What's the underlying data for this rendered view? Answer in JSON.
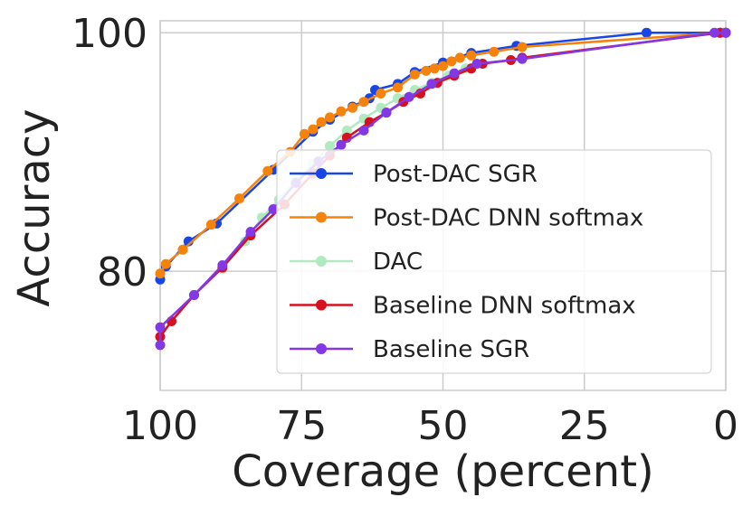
{
  "chart_data": {
    "type": "line",
    "title": "",
    "xlabel": "Coverage (percent)",
    "ylabel": "Accuracy",
    "xlim": [
      100,
      0
    ],
    "ylim": [
      70,
      101
    ],
    "x_ticks": [
      {
        "value": 100,
        "label": "100"
      },
      {
        "value": 75,
        "label": "75"
      },
      {
        "value": 50,
        "label": "50"
      },
      {
        "value": 25,
        "label": "25"
      },
      {
        "value": 0,
        "label": "0"
      }
    ],
    "y_ticks": [
      {
        "value": 80,
        "label": "80"
      },
      {
        "value": 100,
        "label": "100"
      }
    ],
    "grid": true,
    "legend_position": "lower-right",
    "series": [
      {
        "name": "Post-DAC SGR",
        "color": "#1845e6",
        "opacity": 1,
        "points": [
          [
            100,
            79.3
          ],
          [
            99,
            80.4
          ],
          [
            95,
            82.5
          ],
          [
            90,
            84
          ],
          [
            80,
            88.5
          ],
          [
            73,
            91.7
          ],
          [
            70,
            92.7
          ],
          [
            66,
            93.8
          ],
          [
            63,
            94.5
          ],
          [
            62,
            95.2
          ],
          [
            58,
            95.7
          ],
          [
            55,
            96.7
          ],
          [
            50,
            97.5
          ],
          [
            45,
            98.3
          ],
          [
            37,
            98.9
          ],
          [
            14,
            100
          ],
          [
            1,
            100
          ],
          [
            0,
            100
          ]
        ]
      },
      {
        "name": "Post-DAC DNN softmax",
        "color": "#f5820b",
        "opacity": 1,
        "points": [
          [
            100,
            79.8
          ],
          [
            99,
            80.6
          ],
          [
            96,
            81.8
          ],
          [
            91,
            83.9
          ],
          [
            86,
            86.1
          ],
          [
            81,
            88.4
          ],
          [
            77,
            90
          ],
          [
            74.5,
            91.5
          ],
          [
            73,
            91.9
          ],
          [
            71.5,
            92.5
          ],
          [
            70,
            92.9
          ],
          [
            68,
            93.4
          ],
          [
            66,
            93.7
          ],
          [
            64,
            94.2
          ],
          [
            61,
            94.9
          ],
          [
            58,
            95.4
          ],
          [
            55,
            96.5
          ],
          [
            53,
            96.8
          ],
          [
            51.5,
            97
          ],
          [
            50,
            97.2
          ],
          [
            48.5,
            97.6
          ],
          [
            47,
            97.9
          ],
          [
            45,
            98.1
          ],
          [
            41,
            98.4
          ],
          [
            36,
            98.8
          ],
          [
            1,
            100
          ],
          [
            0,
            100
          ]
        ]
      },
      {
        "name": "DAC",
        "color": "#3ccc62",
        "opacity": 0.4,
        "points": [
          [
            89,
            80.2
          ],
          [
            85,
            82.5
          ],
          [
            82,
            84.5
          ],
          [
            79,
            86
          ],
          [
            76,
            87.6
          ],
          [
            73,
            89
          ],
          [
            70,
            90.5
          ],
          [
            67,
            91.8
          ],
          [
            64,
            92.8
          ],
          [
            61,
            93.7
          ],
          [
            58,
            94.5
          ],
          [
            55,
            95.2
          ],
          [
            52,
            95.8
          ],
          [
            49,
            96.4
          ],
          [
            46,
            97
          ]
        ]
      },
      {
        "name": "Baseline DNN softmax",
        "color": "#d6101f",
        "opacity": 1,
        "points": [
          [
            100,
            74.5
          ],
          [
            98,
            75.8
          ],
          [
            94,
            78
          ],
          [
            89,
            80.3
          ],
          [
            84,
            83
          ],
          [
            78,
            85.6
          ],
          [
            73,
            88.2
          ],
          [
            70,
            89.7
          ],
          [
            67,
            91.2
          ],
          [
            63,
            92.5
          ],
          [
            60,
            93.3
          ],
          [
            57,
            94.2
          ],
          [
            54,
            94.9
          ],
          [
            51,
            95.8
          ],
          [
            48,
            96.4
          ],
          [
            45,
            97
          ],
          [
            43,
            97.4
          ],
          [
            38,
            97.7
          ],
          [
            36,
            97.9
          ],
          [
            1,
            100
          ],
          [
            0,
            100
          ]
        ]
      },
      {
        "name": "Baseline SGR",
        "color": "#8338e6",
        "opacity": 1,
        "points": [
          [
            100,
            73.8
          ],
          [
            100,
            75.3
          ],
          [
            94,
            78
          ],
          [
            89,
            80.5
          ],
          [
            84,
            83.3
          ],
          [
            80,
            85.2
          ],
          [
            76,
            87.4
          ],
          [
            72,
            89.2
          ],
          [
            68,
            90.6
          ],
          [
            64,
            91.8
          ],
          [
            60,
            93.3
          ],
          [
            56,
            94.6
          ],
          [
            52,
            95.7
          ],
          [
            48,
            96.6
          ],
          [
            44,
            97.4
          ],
          [
            36,
            97.8
          ],
          [
            2,
            100
          ],
          [
            0,
            100
          ]
        ]
      }
    ]
  }
}
